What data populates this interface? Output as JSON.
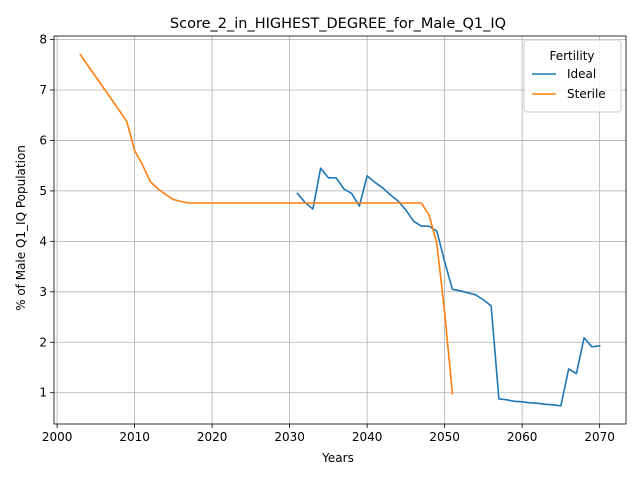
{
  "chart_data": {
    "type": "line",
    "title": "Score_2_in_HIGHEST_DEGREE_for_Male_Q1_IQ",
    "xlabel": "Years",
    "ylabel": "% of Male Q1_IQ Population",
    "xlim": [
      1999.6,
      2073.4
    ],
    "ylim": [
      0.38,
      8.07
    ],
    "xticks": [
      2000,
      2010,
      2020,
      2030,
      2040,
      2050,
      2060,
      2070
    ],
    "yticks": [
      1,
      2,
      3,
      4,
      5,
      6,
      7,
      8
    ],
    "grid": true,
    "legend": {
      "title": "Fertility",
      "location": "top-right"
    },
    "series": [
      {
        "name": "Ideal",
        "color": "#1f77b4",
        "points": [
          [
            2031,
            4.95
          ],
          [
            2032,
            4.77
          ],
          [
            2033,
            4.64
          ],
          [
            2034,
            5.45
          ],
          [
            2035,
            5.26
          ],
          [
            2036,
            5.26
          ],
          [
            2037,
            5.04
          ],
          [
            2038,
            4.95
          ],
          [
            2039,
            4.7
          ],
          [
            2040,
            5.3
          ],
          [
            2041,
            5.17
          ],
          [
            2042,
            5.06
          ],
          [
            2043,
            4.92
          ],
          [
            2044,
            4.8
          ],
          [
            2045,
            4.62
          ],
          [
            2046,
            4.4
          ],
          [
            2047,
            4.3
          ],
          [
            2048,
            4.3
          ],
          [
            2049,
            4.2
          ],
          [
            2050,
            3.6
          ],
          [
            2051,
            3.05
          ],
          [
            2052,
            3.02
          ],
          [
            2053,
            2.98
          ],
          [
            2054,
            2.94
          ],
          [
            2055,
            2.84
          ],
          [
            2056,
            2.72
          ],
          [
            2057,
            0.88
          ],
          [
            2058,
            0.86
          ],
          [
            2059,
            0.83
          ],
          [
            2060,
            0.82
          ],
          [
            2061,
            0.8
          ],
          [
            2062,
            0.79
          ],
          [
            2063,
            0.77
          ],
          [
            2064,
            0.76
          ],
          [
            2065,
            0.74
          ],
          [
            2066,
            1.47
          ],
          [
            2067,
            1.38
          ],
          [
            2068,
            2.09
          ],
          [
            2069,
            1.91
          ],
          [
            2070,
            1.93
          ]
        ]
      },
      {
        "name": "Sterile",
        "color": "#ff7f0e",
        "points": [
          [
            2003,
            7.7
          ],
          [
            2004,
            7.48
          ],
          [
            2005,
            7.26
          ],
          [
            2006,
            7.04
          ],
          [
            2007,
            6.82
          ],
          [
            2008,
            6.6
          ],
          [
            2009,
            6.37
          ],
          [
            2010,
            5.8
          ],
          [
            2011,
            5.52
          ],
          [
            2012,
            5.19
          ],
          [
            2013,
            5.04
          ],
          [
            2014,
            4.93
          ],
          [
            2015,
            4.83
          ],
          [
            2016,
            4.79
          ],
          [
            2017,
            4.76
          ],
          [
            2018,
            4.76
          ],
          [
            2020,
            4.76
          ],
          [
            2025,
            4.76
          ],
          [
            2030,
            4.76
          ],
          [
            2035,
            4.76
          ],
          [
            2040,
            4.76
          ],
          [
            2045,
            4.76
          ],
          [
            2047,
            4.76
          ],
          [
            2048,
            4.52
          ],
          [
            2049,
            3.95
          ],
          [
            2050,
            2.6
          ],
          [
            2051,
            0.98
          ]
        ]
      }
    ]
  }
}
